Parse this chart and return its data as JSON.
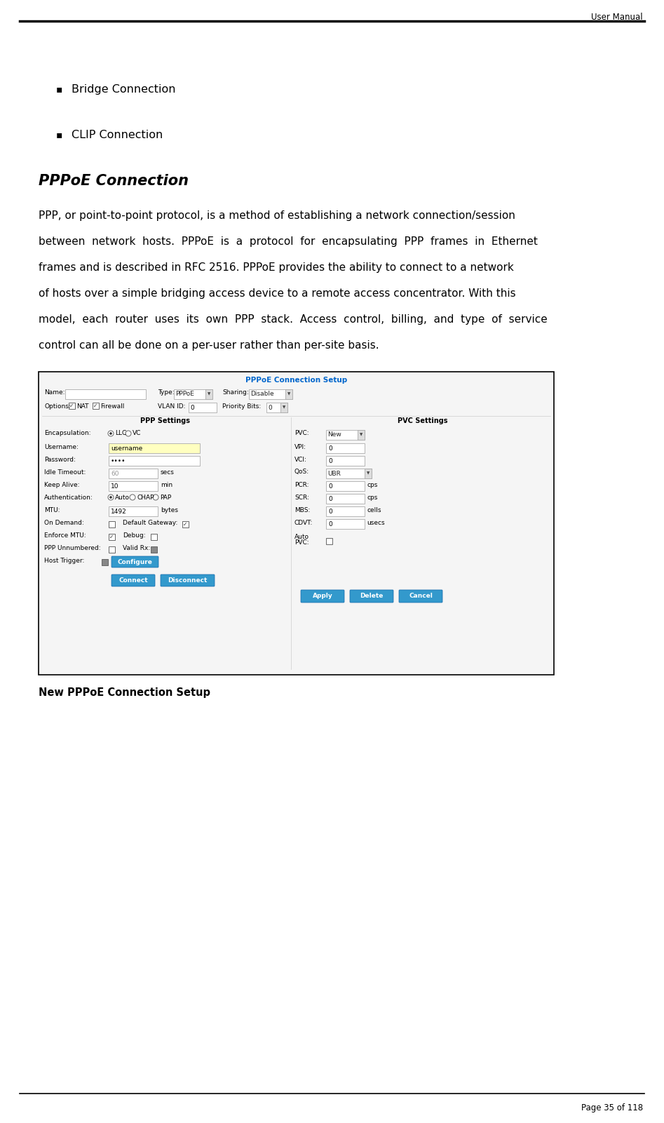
{
  "page_width": 9.47,
  "page_height": 16.01,
  "dpi": 100,
  "bg_color": "#ffffff",
  "header_text": "User Manual",
  "footer_text": "Page 35 of 118",
  "bullet_items": [
    "Bridge Connection",
    "CLIP Connection"
  ],
  "section_title": "PPPoE Connection",
  "body_text_lines": [
    "PPP, or point-to-point protocol, is a method of establishing a network connection/session",
    "between  network  hosts.  PPPoE  is  a  protocol  for  encapsulating  PPP  frames  in  Ethernet",
    "frames and is described in RFC 2516. PPPoE provides the ability to connect to a network",
    "of hosts over a simple bridging access device to a remote access concentrator. With this",
    "model,  each  router  uses  its  own  PPP  stack.  Access  control,  billing,  and  type  of  service",
    "control can all be done on a per-user rather than per-site basis."
  ],
  "caption_text": "New PPPoE Connection Setup",
  "dialog_title": "PPPoE Connection Setup",
  "dialog_title_color": "#0066cc",
  "button_color": "#3399cc"
}
